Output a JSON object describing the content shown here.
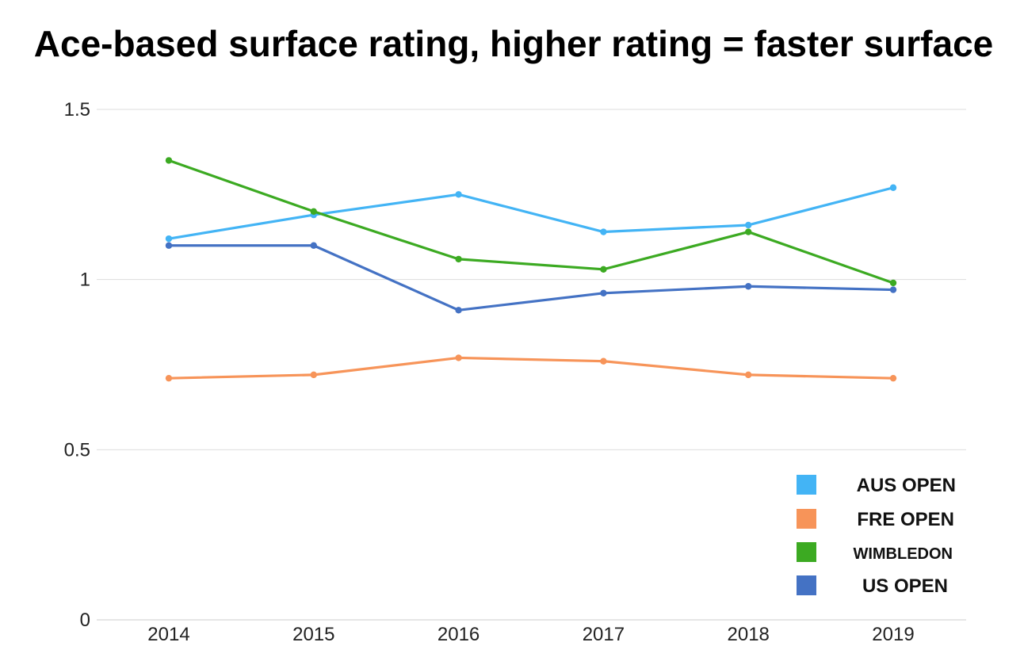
{
  "chart_data": {
    "type": "line",
    "title": "Ace-based surface rating, higher rating = faster surface",
    "xlabel": "",
    "ylabel": "",
    "x": [
      "2014",
      "2015",
      "2016",
      "2017",
      "2018",
      "2019"
    ],
    "ylim": [
      0,
      1.5
    ],
    "yticks": [
      "0",
      "0.5",
      "1",
      "1.5"
    ],
    "grid": true,
    "legend_position": "bottom-right",
    "series": [
      {
        "name": "AUS OPEN",
        "color": "#43b4f5",
        "values": [
          1.12,
          1.19,
          1.25,
          1.14,
          1.16,
          1.27
        ]
      },
      {
        "name": "FRE OPEN",
        "color": "#f79459",
        "values": [
          0.71,
          0.72,
          0.77,
          0.76,
          0.72,
          0.71
        ]
      },
      {
        "name": "WIMBLEDON",
        "color": "#3caa22",
        "values": [
          1.35,
          1.2,
          1.06,
          1.03,
          1.14,
          0.99
        ]
      },
      {
        "name": "US OPEN",
        "color": "#4472c4",
        "values": [
          1.1,
          1.1,
          0.91,
          0.96,
          0.98,
          0.97
        ]
      }
    ]
  }
}
